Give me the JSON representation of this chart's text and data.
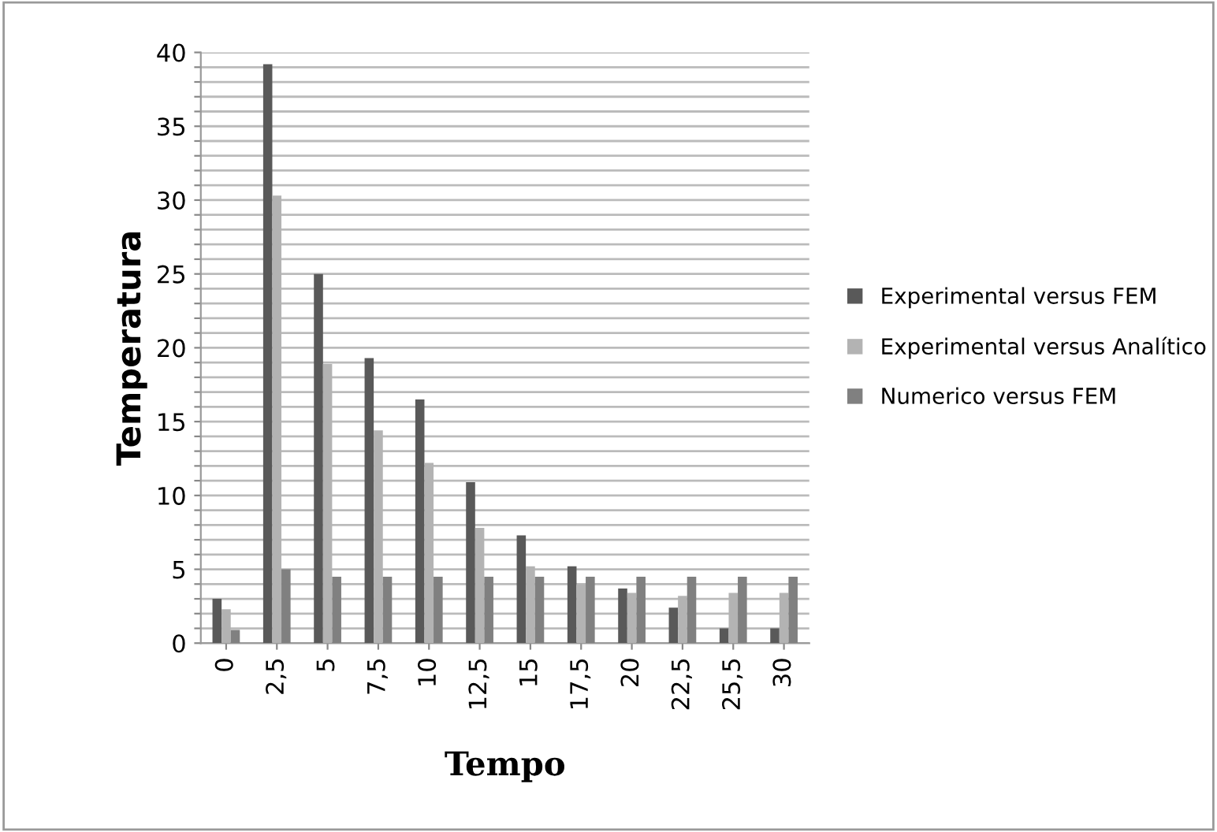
{
  "chart_data": {
    "type": "bar",
    "xlabel": "Tempo",
    "ylabel": "Temperatura",
    "categories": [
      "0",
      "2,5",
      "5",
      "7,5",
      "10",
      "12,5",
      "15",
      "17,5",
      "20",
      "22,5",
      "25,5",
      "30"
    ],
    "series": [
      {
        "name": "Experimental versus FEM",
        "color": "#595959",
        "values": [
          3.0,
          39.2,
          25.0,
          19.3,
          16.5,
          10.9,
          7.3,
          5.2,
          3.7,
          2.4,
          1.0,
          1.0
        ]
      },
      {
        "name": "Experimental versus Analítico",
        "color": "#b3b3b3",
        "values": [
          2.3,
          30.3,
          18.9,
          14.4,
          12.2,
          7.8,
          5.2,
          4.0,
          3.4,
          3.2,
          3.4,
          3.4
        ]
      },
      {
        "name": "Numerico versus FEM",
        "color": "#808080",
        "values": [
          0.9,
          5.0,
          4.5,
          4.5,
          4.5,
          4.5,
          4.5,
          4.5,
          4.5,
          4.5,
          4.5,
          4.5
        ]
      }
    ],
    "ylim": [
      0,
      40
    ],
    "yticks": [
      0,
      {
        "value": 1,
        "label": null
      },
      {
        "value": 2,
        "label": null
      },
      {
        "value": 3,
        "label": null
      },
      {
        "value": 4,
        "label": null
      },
      5,
      {
        "value": 6,
        "label": null
      },
      {
        "value": 7,
        "label": null
      },
      {
        "value": 8,
        "label": null
      },
      {
        "value": 9,
        "label": null
      },
      10,
      {
        "value": 11,
        "label": null
      },
      {
        "value": 12,
        "label": null
      },
      {
        "value": 13,
        "label": null
      },
      {
        "value": 14,
        "label": null
      },
      15,
      {
        "value": 16,
        "label": null
      },
      {
        "value": 17,
        "label": null
      },
      {
        "value": 18,
        "label": null
      },
      {
        "value": 19,
        "label": null
      },
      20,
      {
        "value": 21,
        "label": null
      },
      {
        "value": 22,
        "label": null
      },
      {
        "value": 23,
        "label": null
      },
      {
        "value": 24,
        "label": null
      },
      25,
      {
        "value": 26,
        "label": null
      },
      {
        "value": 27,
        "label": null
      },
      {
        "value": 28,
        "label": null
      },
      {
        "value": 29,
        "label": null
      },
      30,
      {
        "value": 31,
        "label": null
      },
      {
        "value": 32,
        "label": null
      },
      {
        "value": 33,
        "label": null
      },
      {
        "value": 34,
        "label": null
      },
      35,
      {
        "value": 36,
        "label": null
      },
      {
        "value": 37,
        "label": null
      },
      {
        "value": 38,
        "label": null
      },
      {
        "value": 39,
        "label": null
      },
      40
    ],
    "grid": "y",
    "legend": "right"
  }
}
